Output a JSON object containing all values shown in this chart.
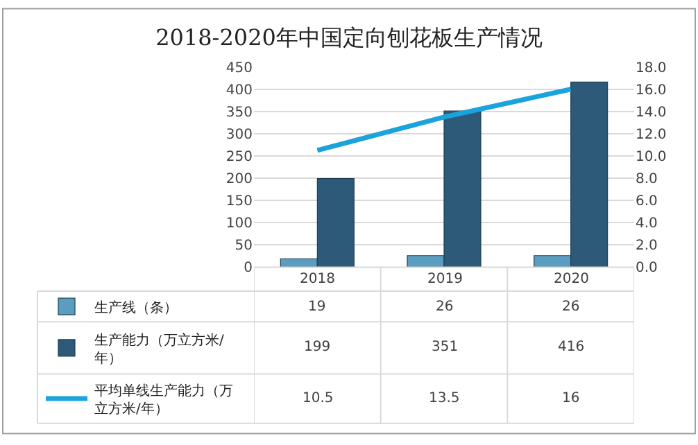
{
  "chart_data": {
    "type": "bar",
    "title": "2018-2020年中国定向刨花板生产情况",
    "categories": [
      "2018",
      "2019",
      "2020"
    ],
    "series": [
      {
        "name": "生产线（条）",
        "color": "#5b9dc0",
        "values": [
          19,
          26,
          26
        ]
      },
      {
        "name": "生产能力（万立方米/年）",
        "color": "#2c5a78",
        "values": [
          199,
          351,
          416
        ]
      },
      {
        "name": "平均单线生产能力（万立方米/年）",
        "color": "#1aa3dc",
        "values": [
          10.5,
          13.5,
          16
        ],
        "type": "line",
        "axis": "y2"
      }
    ],
    "ylim": [
      0,
      450
    ],
    "yticks": [
      0,
      50,
      100,
      150,
      200,
      250,
      300,
      350,
      400,
      450
    ],
    "y2lim": [
      0,
      18
    ],
    "y2ticks": [
      {
        "value": 0,
        "label": "0.0"
      },
      {
        "value": 2,
        "label": "2.0"
      },
      {
        "value": 4,
        "label": "4.0"
      },
      {
        "value": 6,
        "label": "6.0"
      },
      {
        "value": 8,
        "label": "8.0"
      },
      {
        "value": 10,
        "label": "10.0"
      },
      {
        "value": 12,
        "label": "12.0"
      },
      {
        "value": 14,
        "label": "14.0"
      },
      {
        "value": 16,
        "label": "16.0"
      },
      {
        "value": 18,
        "label": "18.0"
      }
    ],
    "grid": "y",
    "legend": "bottom",
    "data_labels": true,
    "marker": "none",
    "line_style": "solid"
  }
}
